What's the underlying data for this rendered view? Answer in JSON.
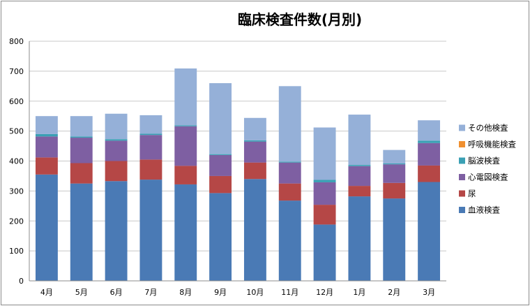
{
  "chart_data": {
    "type": "bar",
    "stacked": true,
    "title": "臨床検査件数(月別)",
    "xlabel": "",
    "ylabel": "",
    "ylim": [
      0,
      800
    ],
    "yticks": [
      0,
      100,
      200,
      300,
      400,
      500,
      600,
      700,
      800
    ],
    "grid": true,
    "legend_position": "right",
    "categories": [
      "4月",
      "5月",
      "6月",
      "7月",
      "8月",
      "9月",
      "10月",
      "11月",
      "12月",
      "1月",
      "2月",
      "3月"
    ],
    "series": [
      {
        "name": "血液検査",
        "color": "#4a7ab5",
        "values": [
          355,
          325,
          333,
          338,
          322,
          293,
          340,
          268,
          188,
          282,
          275,
          330
        ]
      },
      {
        "name": "尿",
        "color": "#b54746",
        "values": [
          57,
          68,
          67,
          67,
          62,
          57,
          55,
          57,
          66,
          35,
          52,
          55
        ]
      },
      {
        "name": "心電図検査",
        "color": "#7e5fa2",
        "values": [
          70,
          85,
          68,
          82,
          132,
          70,
          70,
          70,
          75,
          66,
          62,
          75
        ]
      },
      {
        "name": "脳波検査",
        "color": "#3aa0b4",
        "values": [
          8,
          4,
          5,
          4,
          3,
          3,
          4,
          3,
          8,
          4,
          3,
          8
        ]
      },
      {
        "name": "呼吸機能検査",
        "color": "#f09030",
        "values": [
          0,
          0,
          0,
          0,
          0,
          0,
          0,
          0,
          0,
          0,
          0,
          0
        ]
      },
      {
        "name": "その他検査",
        "color": "#95b0d8",
        "values": [
          60,
          68,
          85,
          62,
          190,
          237,
          75,
          252,
          175,
          168,
          45,
          68
        ]
      }
    ]
  }
}
